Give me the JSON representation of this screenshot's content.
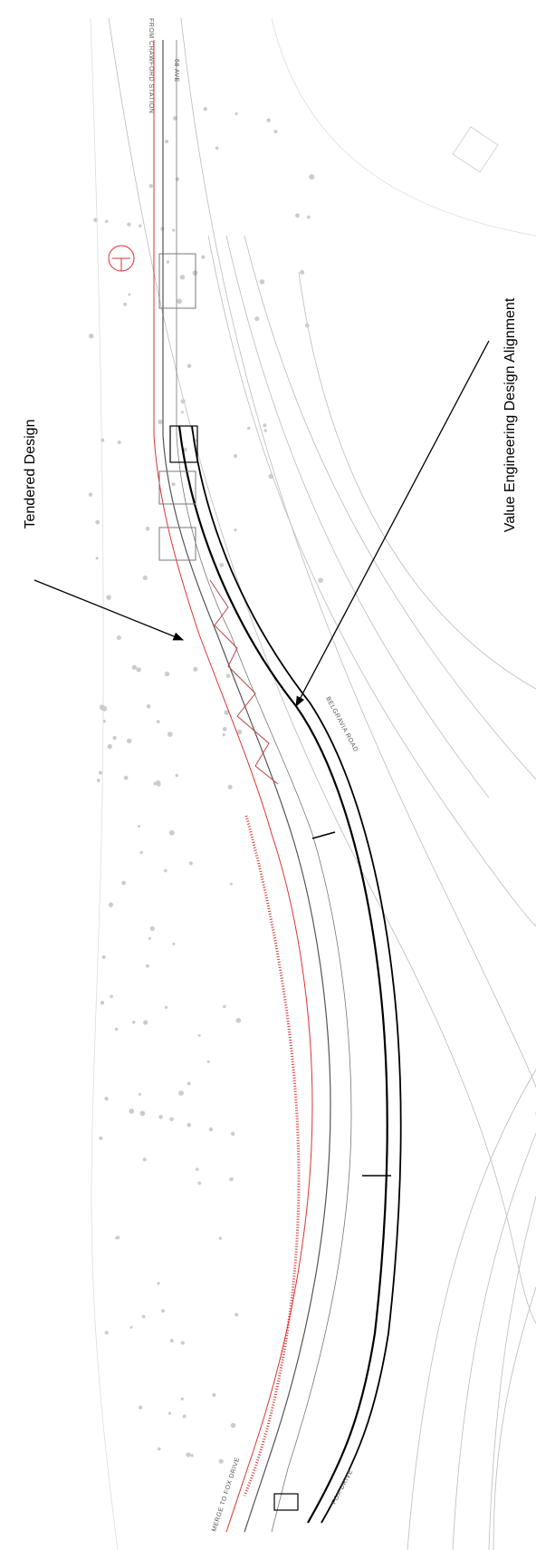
{
  "annotations": {
    "tendered": "Tendered Design",
    "value_engineering": "Value Engineering Design Alignment"
  },
  "drawing_labels": {
    "from_station": "FROM CRAWFORD STATION",
    "avenue": "68 AVE",
    "road": "BELGRAVIA ROAD",
    "merge": "MERGE TO FOX DRIVE",
    "fox_drive": "FOX DRIVE"
  }
}
